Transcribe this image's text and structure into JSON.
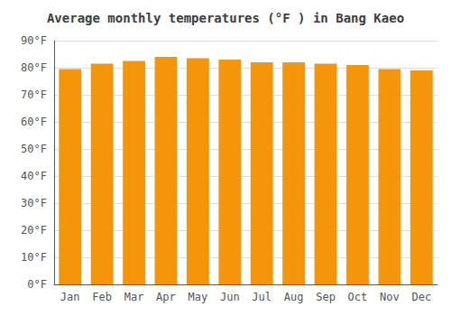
{
  "chart_data": {
    "type": "bar",
    "title": "Average monthly temperatures (°F ) in Bang Kaeo",
    "categories": [
      "Jan",
      "Feb",
      "Mar",
      "Apr",
      "May",
      "Jun",
      "Jul",
      "Aug",
      "Sep",
      "Oct",
      "Nov",
      "Dec"
    ],
    "values": [
      79.5,
      81.5,
      82.5,
      84.0,
      83.5,
      83.0,
      82.0,
      82.0,
      81.5,
      81.0,
      79.5,
      79.0
    ],
    "color": "#F5960A",
    "ylim": [
      0,
      90
    ],
    "yticks": [
      {
        "value": 0,
        "label": "0°F"
      },
      {
        "value": 10,
        "label": "10°F"
      },
      {
        "value": 20,
        "label": "20°F"
      },
      {
        "value": 30,
        "label": "30°F"
      },
      {
        "value": 40,
        "label": "40°F"
      },
      {
        "value": 50,
        "label": "50°F"
      },
      {
        "value": 60,
        "label": "60°F"
      },
      {
        "value": 70,
        "label": "70°F"
      },
      {
        "value": 80,
        "label": "80°F"
      },
      {
        "value": 90,
        "label": "90°F"
      }
    ],
    "grid": true
  }
}
